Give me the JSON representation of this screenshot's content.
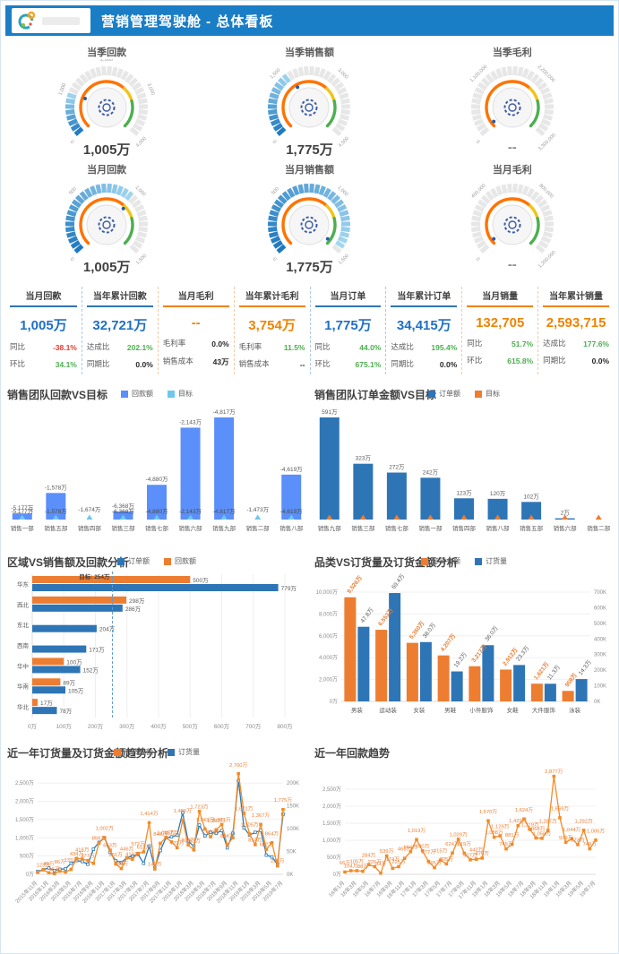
{
  "header": {
    "title": "营销管理驾驶舱 - 总体看板"
  },
  "colors": {
    "header_blue": "#1a7ec6",
    "kpi_blue": "#1f6fc5",
    "kpi_orange": "#f08300",
    "positive_green": "#4caf50",
    "negative_red": "#e03c32",
    "bar_periwinkle": "#5b8ff9",
    "bar_lightblue": "#6dc8ec",
    "bar_steelblue": "#2e75b6",
    "bar_orange": "#ed7d31",
    "line_orange": "#f28c28",
    "line_blue": "#2e79b9"
  },
  "gauges": [
    {
      "title": "当季回款",
      "value": "1,005万",
      "ticks": [
        "0",
        "1,000",
        "2,000",
        "3,000",
        "4,000"
      ],
      "fraction": 0.25
    },
    {
      "title": "当季销售额",
      "value": "1,775万",
      "ticks": [
        "0",
        "1,500",
        "3,000",
        "4,500"
      ],
      "fraction": 0.39
    },
    {
      "title": "当季毛利",
      "value": "--",
      "ticks": [
        "0",
        "1,100,000",
        "2,200,000",
        "3,300,000"
      ],
      "fraction": 0
    },
    {
      "title": "当月回款",
      "value": "1,005万",
      "ticks": [
        "0",
        "500",
        "1,000",
        "1,500"
      ],
      "fraction": 0.67
    },
    {
      "title": "当月销售额",
      "value": "1,775万",
      "ticks": [
        "0",
        "500",
        "1,000",
        "1,500"
      ],
      "fraction": 0.97
    },
    {
      "title": "当月毛利",
      "value": "--",
      "ticks": [
        "0",
        "400,000",
        "800,000",
        "1,200,000"
      ],
      "fraction": 0
    }
  ],
  "kpis": [
    {
      "title": "当月回款",
      "accent": "blue",
      "value": "1,005万",
      "rows": [
        {
          "label": "同比",
          "value": "-38.1%",
          "color": "red"
        },
        {
          "label": "环比",
          "value": "34.1%",
          "color": "green"
        }
      ]
    },
    {
      "title": "当年累计回款",
      "accent": "blue",
      "value": "32,721万",
      "rows": [
        {
          "label": "达成比",
          "value": "202.1%",
          "color": "green"
        },
        {
          "label": "同期比",
          "value": "0.0%",
          "color": "dark"
        }
      ]
    },
    {
      "title": "当月毛利",
      "accent": "orange",
      "value": "--",
      "rows": [
        {
          "label": "毛利率",
          "value": "0.0%",
          "color": "dark"
        },
        {
          "label": "销售成本",
          "value": "43万",
          "color": "dark"
        }
      ]
    },
    {
      "title": "当年累计毛利",
      "accent": "orange",
      "value": "3,754万",
      "rows": [
        {
          "label": "毛利率",
          "value": "11.5%",
          "color": "green"
        },
        {
          "label": "销售成本",
          "value": "--",
          "color": "dark"
        }
      ]
    },
    {
      "title": "当月订单",
      "accent": "blue",
      "value": "1,775万",
      "rows": [
        {
          "label": "同比",
          "value": "44.0%",
          "color": "green"
        },
        {
          "label": "环比",
          "value": "675.1%",
          "color": "green"
        }
      ]
    },
    {
      "title": "当年累计订单",
      "accent": "blue",
      "value": "34,415万",
      "rows": [
        {
          "label": "达成比",
          "value": "195.4%",
          "color": "green"
        },
        {
          "label": "同期比",
          "value": "0.0%",
          "color": "dark"
        }
      ]
    },
    {
      "title": "当月销量",
      "accent": "orange",
      "value": "132,705",
      "rows": [
        {
          "label": "同比",
          "value": "51.7%",
          "color": "green"
        },
        {
          "label": "环比",
          "value": "615.8%",
          "color": "green"
        }
      ]
    },
    {
      "title": "当年累计销量",
      "accent": "orange",
      "value": "2,593,715",
      "rows": [
        {
          "label": "达成比",
          "value": "177.6%",
          "color": "green"
        },
        {
          "label": "同期比",
          "value": "0.0%",
          "color": "dark"
        }
      ]
    }
  ],
  "chart_data": [
    {
      "type": "bar",
      "title": "销售团队回款VS目标",
      "legend": [
        {
          "label": "回款额",
          "color": "#5b8ff9"
        },
        {
          "label": "目标",
          "color": "#6dc8ec"
        }
      ],
      "bar_color": "#5b8ff9",
      "marker_color": "#6dc8ec",
      "dup_labels": true,
      "categories": [
        "销售一部",
        "销售五部",
        "销售四部",
        "销售三部",
        "销售七部",
        "销售六部",
        "销售九部",
        "销售二部",
        "销售八部"
      ],
      "heights": [
        0.06,
        0.26,
        0,
        0.08,
        0.34,
        0.9,
        1.0,
        0,
        0.44
      ],
      "value_labels": [
        "-5,177万",
        "-1,578万",
        "-1,674万",
        "-6,368万",
        "-4,880万",
        "-2,143万",
        "-4,817万",
        "-1,473万",
        "-4,619万"
      ]
    },
    {
      "type": "bar",
      "title": "销售团队订单金额VS目标",
      "legend": [
        {
          "label": "订单额",
          "color": "#2e75b6"
        },
        {
          "label": "目标",
          "color": "#ed7d31"
        }
      ],
      "bar_color": "#2e75b6",
      "marker_color": "#ed7d31",
      "dup_labels": false,
      "categories": [
        "销售九部",
        "销售三部",
        "销售七部",
        "销售一部",
        "销售四部",
        "销售八部",
        "销售五部",
        "销售六部",
        "销售二部"
      ],
      "values": [
        591,
        323,
        272,
        242,
        123,
        120,
        102,
        2,
        0
      ],
      "max": 591,
      "value_labels": [
        "591万",
        "323万",
        "272万",
        "242万",
        "123万",
        "120万",
        "102万",
        "2万",
        ""
      ]
    },
    {
      "type": "hbar",
      "title": "区域VS销售额及回款分析",
      "legend": [
        {
          "label": "订单额",
          "color": "#2e75b6"
        },
        {
          "label": "回款额",
          "color": "#ed7d31"
        }
      ],
      "categories": [
        "华东",
        "西北",
        "东北",
        "西南",
        "华中",
        "华南",
        "华北"
      ],
      "series": [
        {
          "name": "回款额",
          "color": "#ed7d31",
          "values": [
            500,
            298,
            0,
            0,
            100,
            89,
            17
          ],
          "labels": [
            "500万",
            "298万",
            "",
            "",
            "100万",
            "89万",
            "17万"
          ]
        },
        {
          "name": "订单额",
          "color": "#2e75b6",
          "values": [
            779,
            286,
            204,
            171,
            152,
            105,
            78
          ],
          "labels": [
            "779万",
            "286万",
            "204万",
            "171万",
            "152万",
            "105万",
            "78万"
          ]
        }
      ],
      "x_ticks": [
        "0万",
        "100万",
        "200万",
        "300万",
        "400万",
        "500万",
        "600万",
        "700万",
        "800万"
      ],
      "x_max": 800,
      "target": {
        "value": 254,
        "label": "目标: 254万"
      }
    },
    {
      "type": "dualbar",
      "title": "品类VS订货量及订货金额分析",
      "legend": [
        {
          "label": "订货金额",
          "color": "#ed7d31"
        },
        {
          "label": "订货量",
          "color": "#2e75b6"
        }
      ],
      "categories": [
        "男装",
        "运动装",
        "女装",
        "男鞋",
        "小件服饰",
        "女鞋",
        "大件服饰",
        "泳装"
      ],
      "amount": {
        "color": "#ed7d31",
        "values": [
          9526,
          6553,
          5360,
          4207,
          3217,
          2912,
          1621,
          959
        ],
        "labels": [
          "9,526万",
          "6,553万",
          "5,360万",
          "4,207万",
          "3,217万",
          "2,912万",
          "1,621万",
          "959万"
        ],
        "scale_max": 10000,
        "ticks": [
          "0万",
          "2,000万",
          "4,000万",
          "6,000万",
          "8,000万",
          "10,000万"
        ],
        "tick_values": [
          0,
          2000,
          4000,
          6000,
          8000,
          10000
        ]
      },
      "quantity": {
        "color": "#2e75b6",
        "values": [
          478,
          694,
          380,
          192,
          360,
          233,
          113,
          143
        ],
        "labels": [
          "47.8万",
          "69.4万",
          "38.0万",
          "19.2万",
          "36.0万",
          "23.3万",
          "11.3万",
          "14.3万"
        ],
        "scale_max": 700,
        "ticks": [
          "0K",
          "100K",
          "200K",
          "300K",
          "400K",
          "500K",
          "600K",
          "700K"
        ],
        "tick_values": [
          0,
          100,
          200,
          300,
          400,
          500,
          600,
          700
        ]
      }
    },
    {
      "type": "line",
      "title": "近一年订货量及订货金额趋势分析",
      "legend": [
        {
          "label": "订货金额",
          "color": "#ed7d31"
        },
        {
          "label": "订货量",
          "color": "#2e75b6"
        }
      ],
      "x_labels": [
        "2015年11月",
        "2016年1月",
        "2016年3月",
        "2016年5月",
        "2016年7月",
        "2016年9月",
        "2016年11月",
        "2017年1月",
        "2017年3月",
        "2017年5月",
        "2017年7月",
        "2017年9月",
        "2017年11月",
        "2018年1月",
        "2018年3月",
        "2018年5月",
        "2018年7月",
        "2018年9月",
        "2018年11月",
        "2019年1月",
        "2019年3月",
        "2019年5月",
        "2019年7月"
      ],
      "amount": {
        "color": "#f28c28",
        "scale_max": 2800,
        "values": [
          50,
          123,
          40,
          16,
          86,
          60,
          133,
          434,
          418,
          377,
          300,
          856,
          1002,
          663,
          281,
          158,
          446,
          413,
          572,
          613,
          1414,
          145,
          848,
          1011,
          887,
          729,
          1486,
          803,
          667,
          1723,
          1243,
          1029,
          1220,
          1361,
          804,
          1000,
          2760,
          1671,
          1105,
          814,
          1367,
          682,
          864,
          229,
          1775
        ],
        "labels": [
          "",
          "123万",
          "40万",
          "16万",
          "86万",
          "",
          "133万",
          "434万",
          "418万",
          "377万",
          "",
          "856万",
          "1,002万",
          "663万",
          "281万",
          "158万",
          "446万",
          "413万",
          "572万",
          "613万",
          "1,414万",
          "145万",
          "848万",
          "1,011万",
          "887万",
          "729万",
          "1,486万",
          "803万",
          "667万",
          "1,723万",
          "1,243万",
          "1,029万",
          "1,220万",
          "1,361万",
          "804万",
          "",
          "2,760万",
          "1,671万",
          "1,105万",
          "814万",
          "1,367万",
          "682万",
          "864万",
          "229万",
          "1,775万"
        ],
        "ticks": [
          "0万",
          "500万",
          "1,000万",
          "1,500万",
          "2,000万",
          "2,500万"
        ],
        "tick_values": [
          0,
          500,
          1000,
          1500,
          2000,
          2500
        ]
      },
      "quantity": {
        "color": "#2e79b9",
        "scale_max": 224,
        "values": [
          6,
          10,
          14,
          8,
          11,
          12,
          24,
          30,
          28,
          22,
          55,
          70,
          80,
          48,
          30,
          26,
          36,
          40,
          44,
          24,
          62,
          14,
          52,
          80,
          82,
          86,
          135,
          72,
          62,
          108,
          84,
          92,
          90,
          96,
          58,
          90,
          205,
          102,
          86,
          92,
          96,
          42,
          38,
          22,
          132
        ],
        "ticks": [
          "0K",
          "50K",
          "100K",
          "150K",
          "200K"
        ],
        "tick_values": [
          0,
          50,
          100,
          150,
          200
        ]
      }
    },
    {
      "type": "line",
      "title": "近一年回款趋势",
      "legend": [],
      "x_labels": [
        "16年1月",
        "16年3月",
        "16年5月",
        "16年7月",
        "16年9月",
        "16年11月",
        "17年1月",
        "17年3月",
        "17年5月",
        "17年7月",
        "17年9月",
        "17年11月",
        "18年1月",
        "18年3月",
        "18年5月",
        "18年7月",
        "18年9月",
        "18年11月",
        "19年1月",
        "19年3月",
        "19年5月",
        "19年7月"
      ],
      "amount": {
        "color": "#f28c28",
        "scale_max": 3000,
        "values": [
          66,
          104,
          105,
          88,
          284,
          225,
          33,
          539,
          174,
          225,
          468,
          664,
          1019,
          690,
          377,
          195,
          415,
          305,
          624,
          1029,
          619,
          427,
          442,
          476,
          1570,
          1088,
          1129,
          745,
          881,
          1429,
          1624,
          1319,
          1068,
          1058,
          1287,
          2877,
          1659,
          939,
          1044,
          873,
          1292,
          749,
          1005
        ],
        "labels": [
          "66万",
          "104万",
          "105万",
          "88万",
          "284万",
          "225万",
          "33万",
          "539万",
          "174万",
          "225万",
          "468万",
          "664万",
          "1,019万",
          "690万",
          "377万",
          "195万",
          "415万",
          "305万",
          "624万",
          "1,029万",
          "619万",
          "427万",
          "442万",
          "476万",
          "1,570万",
          "1,088万",
          "1,129万",
          "745万",
          "881万",
          "1,429万",
          "1,624万",
          "1,319万",
          "1,068万",
          "1,058万",
          "1,287万",
          "2,877万",
          "1,659万",
          "939万",
          "1,044万",
          "873万",
          "1,292万",
          "749万",
          "1,005万"
        ],
        "ticks": [
          "0万",
          "500万",
          "1,000万",
          "1,500万",
          "2,000万",
          "2,500万"
        ],
        "tick_values": [
          0,
          500,
          1000,
          1500,
          2000,
          2500
        ]
      }
    }
  ]
}
